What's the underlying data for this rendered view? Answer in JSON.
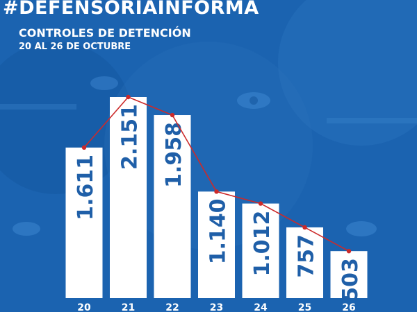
{
  "header": {
    "hashtag": "#DEFENSORÍAINFORMA",
    "title": "CONTROLES DE DETENCIÓN",
    "subtitle": "20 AL 26 DE OCTUBRE"
  },
  "colors": {
    "background": "#1b63b0",
    "bar_fill": "#ffffff",
    "bar_text": "#1f5fa8",
    "line": "#cc2a2a",
    "axis_text": "#ffffff"
  },
  "chart_data": {
    "type": "bar",
    "categories": [
      "20",
      "21",
      "22",
      "23",
      "24",
      "25",
      "26"
    ],
    "values": [
      1611,
      2151,
      1958,
      1140,
      1012,
      757,
      503
    ],
    "value_labels": [
      "1.611",
      "2.151",
      "1.958",
      "1.140",
      "1.012",
      "757",
      "503"
    ],
    "overlay": "line",
    "title": "CONTROLES DE DETENCIÓN",
    "subtitle": "20 AL 26 DE OCTUBRE",
    "xlabel": "",
    "ylabel": "",
    "grid": false,
    "legend": "none"
  }
}
